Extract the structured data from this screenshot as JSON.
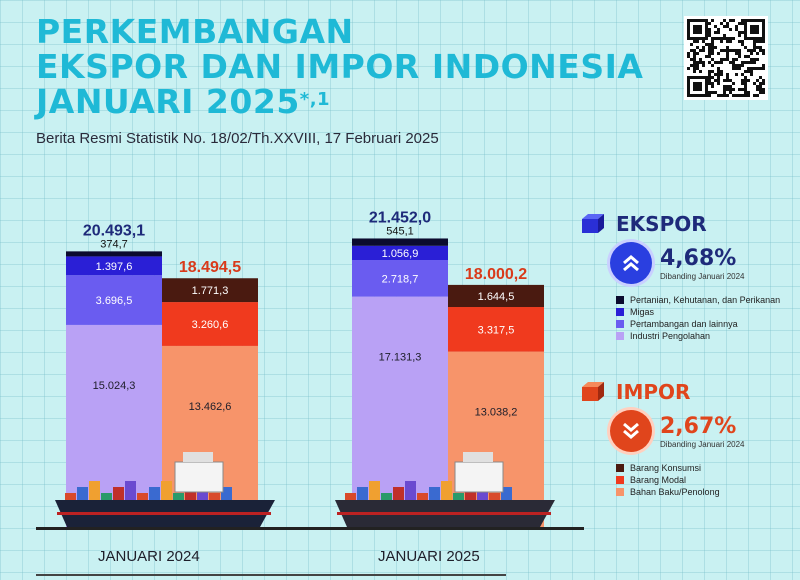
{
  "header": {
    "title_line1": "PERKEMBANGAN",
    "title_line2": "EKSPOR DAN IMPOR INDONESIA",
    "title_line3": "JANUARI 2025",
    "title_mark": "*,1",
    "subtitle": "Berita Resmi Statistik No. 18/02/Th.XXVIII, 17 Februari 2025"
  },
  "ekspor": {
    "title": "EKSPOR",
    "growth": "4,68%",
    "growth_note": "Dibanding Januari 2024",
    "icon": "double-chevron-up-icon",
    "legend": [
      {
        "label": "Pertanian, Kehutanan, dan Perikanan",
        "color": "#0b0b2e"
      },
      {
        "label": "Migas",
        "color": "#2a1fd6"
      },
      {
        "label": "Pertambangan dan lainnya",
        "color": "#6a5cf0"
      },
      {
        "label": "Industri Pengolahan",
        "color": "#b9a1f5"
      }
    ]
  },
  "impor": {
    "title": "IMPOR",
    "growth": "2,67%",
    "growth_note": "Dibanding Januari 2024",
    "icon": "double-chevron-down-icon",
    "legend": [
      {
        "label": "Barang Konsumsi",
        "color": "#4a1a10"
      },
      {
        "label": "Barang Modal",
        "color": "#f03a1e"
      },
      {
        "label": "Bahan Baku/Penolong",
        "color": "#f7946a"
      }
    ]
  },
  "chart_data": {
    "type": "bar",
    "stacked": true,
    "title": "PERKEMBANGAN EKSPOR DAN IMPOR INDONESIA JANUARI 2025",
    "categories": [
      "JANUARI 2024",
      "JANUARI 2025"
    ],
    "ylim": [
      0,
      22000
    ],
    "groups": [
      {
        "name": "EKSPOR",
        "total_color": "#1e2a7a",
        "totals": [
          "20.493,1",
          "21.452,0"
        ],
        "total_values": [
          20493.1,
          21452.0
        ],
        "segments": [
          {
            "name": "Industri Pengolahan",
            "color": "#b9a1f5",
            "values": [
              15024.3,
              17131.3
            ],
            "labels": [
              "15.024,3",
              "17.131,3"
            ]
          },
          {
            "name": "Pertambangan dan lainnya",
            "color": "#6a5cf0",
            "values": [
              3696.5,
              2718.7
            ],
            "labels": [
              "3.696,5",
              "2.718,7"
            ]
          },
          {
            "name": "Migas",
            "color": "#2a1fd6",
            "values": [
              1397.6,
              1056.9
            ],
            "labels": [
              "1.397,6",
              "1.056,9"
            ]
          },
          {
            "name": "Pertanian, Kehutanan, dan Perikanan",
            "color": "#0b0b2e",
            "values": [
              374.7,
              545.1
            ],
            "labels": [
              "374,7",
              "545,1"
            ]
          }
        ]
      },
      {
        "name": "IMPOR",
        "total_color": "#d93a1a",
        "totals": [
          "18.494,5",
          "18.000,2"
        ],
        "total_values": [
          18494.5,
          18000.2
        ],
        "segments": [
          {
            "name": "Bahan Baku/Penolong",
            "color": "#f7946a",
            "values": [
              13462.6,
              13038.2
            ],
            "labels": [
              "13.462,6",
              "13.038,2"
            ]
          },
          {
            "name": "Barang Modal",
            "color": "#f03a1e",
            "values": [
              3260.6,
              3317.5
            ],
            "labels": [
              "3.260,6",
              "3.317,5"
            ]
          },
          {
            "name": "Barang Konsumsi",
            "color": "#4a1a10",
            "values": [
              1771.3,
              1644.5
            ],
            "labels": [
              "1.771,3",
              "1.644,5"
            ]
          }
        ]
      }
    ]
  }
}
